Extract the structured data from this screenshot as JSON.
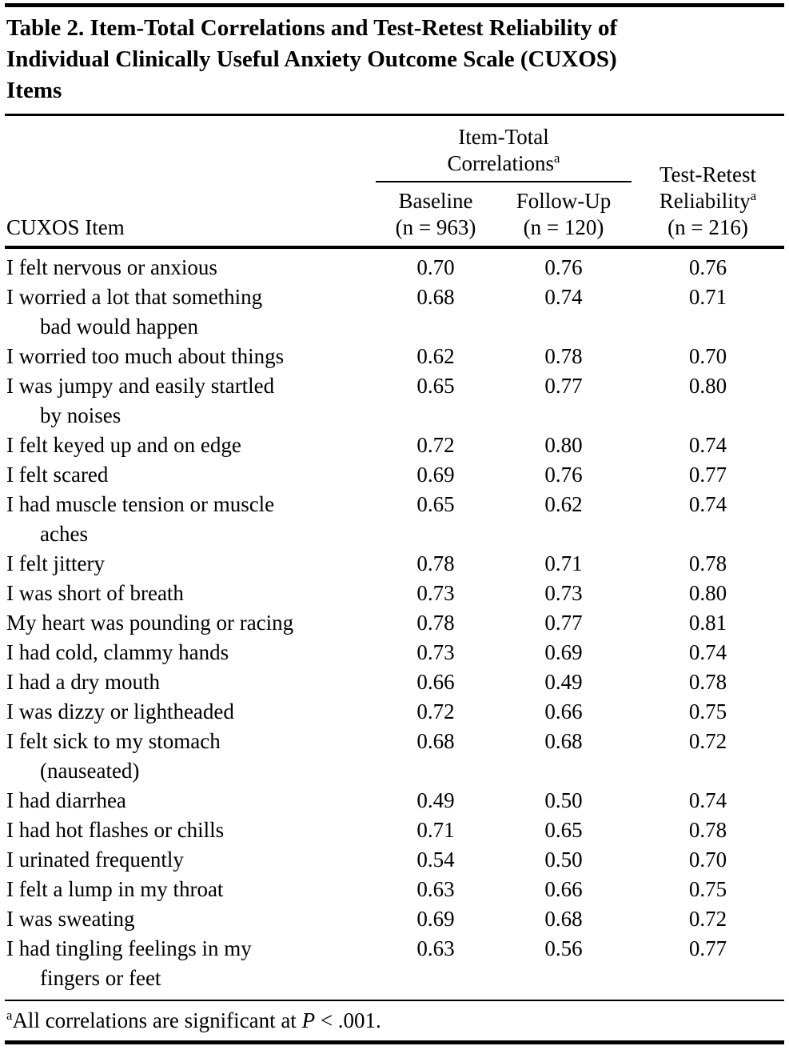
{
  "colors": {
    "text": "#000000",
    "rules": "#000000",
    "background": "#ffffff"
  },
  "title": {
    "line1": "Table 2. Item-Total Correlations and Test-Retest Reliability of",
    "line2": "Individual Clinically Useful Anxiety Outcome Scale (CUXOS)",
    "line3": "Items"
  },
  "header": {
    "item_column": "CUXOS Item",
    "group": {
      "line1": "Item-Total",
      "line2": "Correlations",
      "marker": "a"
    },
    "baseline": {
      "line1": "Baseline",
      "line2": "(n = 963)"
    },
    "followup": {
      "line1": "Follow-Up",
      "line2": "(n = 120)"
    },
    "retest": {
      "line1": "Test-Retest",
      "line2": "Reliability",
      "marker": "a",
      "line3": "(n = 216)"
    }
  },
  "rows": [
    {
      "item": [
        "I felt nervous or anxious"
      ],
      "baseline": "0.70",
      "followup": "0.76",
      "retest": "0.76"
    },
    {
      "item": [
        "I worried a lot that something",
        "bad would happen"
      ],
      "baseline": "0.68",
      "followup": "0.74",
      "retest": "0.71"
    },
    {
      "item": [
        "I worried too much about things"
      ],
      "baseline": "0.62",
      "followup": "0.78",
      "retest": "0.70"
    },
    {
      "item": [
        "I was jumpy and easily startled",
        "by noises"
      ],
      "baseline": "0.65",
      "followup": "0.77",
      "retest": "0.80"
    },
    {
      "item": [
        "I felt keyed up and on edge"
      ],
      "baseline": "0.72",
      "followup": "0.80",
      "retest": "0.74"
    },
    {
      "item": [
        "I felt scared"
      ],
      "baseline": "0.69",
      "followup": "0.76",
      "retest": "0.77"
    },
    {
      "item": [
        "I had muscle tension or muscle",
        "aches"
      ],
      "baseline": "0.65",
      "followup": "0.62",
      "retest": "0.74"
    },
    {
      "item": [
        "I felt jittery"
      ],
      "baseline": "0.78",
      "followup": "0.71",
      "retest": "0.78"
    },
    {
      "item": [
        "I was short of breath"
      ],
      "baseline": "0.73",
      "followup": "0.73",
      "retest": "0.80"
    },
    {
      "item": [
        "My heart was pounding or racing"
      ],
      "baseline": "0.78",
      "followup": "0.77",
      "retest": "0.81"
    },
    {
      "item": [
        "I had cold, clammy hands"
      ],
      "baseline": "0.73",
      "followup": "0.69",
      "retest": "0.74"
    },
    {
      "item": [
        "I had a dry mouth"
      ],
      "baseline": "0.66",
      "followup": "0.49",
      "retest": "0.78"
    },
    {
      "item": [
        "I was dizzy or lightheaded"
      ],
      "baseline": "0.72",
      "followup": "0.66",
      "retest": "0.75"
    },
    {
      "item": [
        "I felt sick to my stomach",
        "(nauseated)"
      ],
      "baseline": "0.68",
      "followup": "0.68",
      "retest": "0.72"
    },
    {
      "item": [
        "I had diarrhea"
      ],
      "baseline": "0.49",
      "followup": "0.50",
      "retest": "0.74"
    },
    {
      "item": [
        "I had hot flashes or chills"
      ],
      "baseline": "0.71",
      "followup": "0.65",
      "retest": "0.78"
    },
    {
      "item": [
        "I urinated frequently"
      ],
      "baseline": "0.54",
      "followup": "0.50",
      "retest": "0.70"
    },
    {
      "item": [
        "I felt a lump in my throat"
      ],
      "baseline": "0.63",
      "followup": "0.66",
      "retest": "0.75"
    },
    {
      "item": [
        "I was sweating"
      ],
      "baseline": "0.69",
      "followup": "0.68",
      "retest": "0.72"
    },
    {
      "item": [
        "I had tingling feelings in my",
        "fingers or feet"
      ],
      "baseline": "0.63",
      "followup": "0.56",
      "retest": "0.77"
    }
  ],
  "footnote": {
    "marker": "a",
    "before_italic": "All correlations are significant at ",
    "italic": "P",
    "after_italic": " < .001."
  }
}
